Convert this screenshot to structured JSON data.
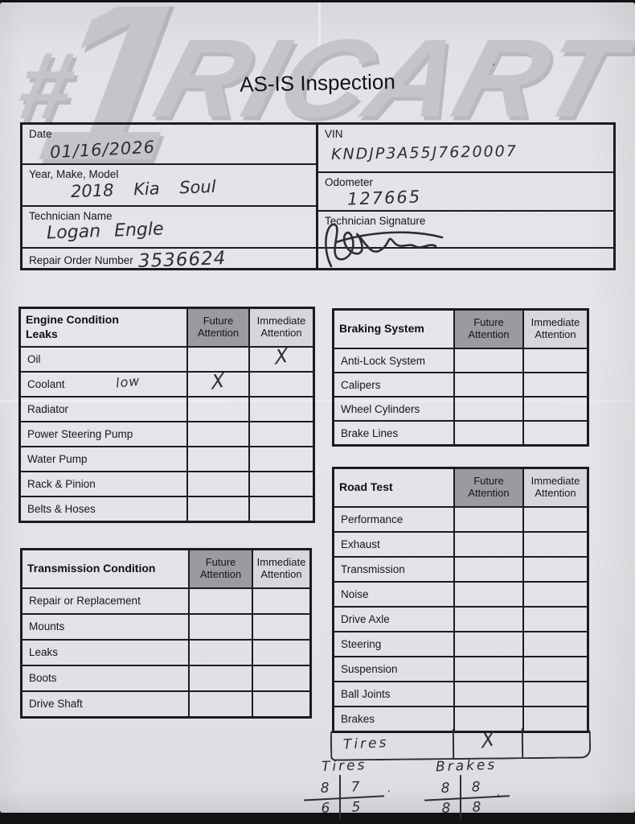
{
  "header": {
    "watermark_hash": "#",
    "watermark_numeral": "1",
    "watermark_name": "RICART",
    "title": "AS-IS Inspection"
  },
  "info": {
    "date": {
      "label": "Date",
      "value": "01/16/2026"
    },
    "vin": {
      "label": "VIN",
      "value": "KNDJP3A55J7620007"
    },
    "ymm": {
      "label": "Year, Make, Model",
      "value": "2018 Kia Soul"
    },
    "odometer": {
      "label": "Odometer",
      "value": "127665"
    },
    "tech_name": {
      "label": "Technician Name",
      "value": "Logan Engle"
    },
    "tech_signature": {
      "label": "Technician Signature"
    },
    "repair_order": {
      "label": "Repair Order Number",
      "value": "3536624"
    }
  },
  "columns": {
    "future": "Future Attention",
    "immediate": "Immediate Attention"
  },
  "colors": {
    "future_header_bg": "#9c99a0",
    "immediate_header_bg": "#d8d6db",
    "ink": "#2e2d35",
    "line": "#1c1b20"
  },
  "tables": {
    "engine": {
      "title": "Engine Condition\nLeaks",
      "rows": [
        {
          "label": "Oil",
          "future": "",
          "immediate": "X"
        },
        {
          "label": "Coolant",
          "note": "low",
          "future": "X",
          "immediate": ""
        },
        {
          "label": "Radiator",
          "future": "",
          "immediate": ""
        },
        {
          "label": "Power Steering Pump",
          "future": "",
          "immediate": ""
        },
        {
          "label": "Water Pump",
          "future": "",
          "immediate": ""
        },
        {
          "label": "Rack & Pinion",
          "future": "",
          "immediate": ""
        },
        {
          "label": "Belts & Hoses",
          "future": "",
          "immediate": ""
        }
      ]
    },
    "braking": {
      "title": "Braking System",
      "rows": [
        {
          "label": "Anti-Lock System",
          "future": "",
          "immediate": ""
        },
        {
          "label": "Calipers",
          "future": "",
          "immediate": ""
        },
        {
          "label": "Wheel Cylinders",
          "future": "",
          "immediate": ""
        },
        {
          "label": "Brake Lines",
          "future": "",
          "immediate": ""
        }
      ]
    },
    "road_test": {
      "title": "Road Test",
      "rows": [
        {
          "label": "Performance",
          "future": "",
          "immediate": ""
        },
        {
          "label": "Exhaust",
          "future": "",
          "immediate": ""
        },
        {
          "label": "Transmission",
          "future": "",
          "immediate": ""
        },
        {
          "label": "Noise",
          "future": "",
          "immediate": ""
        },
        {
          "label": "Drive Axle",
          "future": "",
          "immediate": ""
        },
        {
          "label": "Steering",
          "future": "",
          "immediate": ""
        },
        {
          "label": "Suspension",
          "future": "",
          "immediate": ""
        },
        {
          "label": "Ball Joints",
          "future": "",
          "immediate": ""
        },
        {
          "label": "Brakes",
          "future": "",
          "immediate": ""
        }
      ],
      "extra_row": {
        "label": "Tires",
        "future": "X",
        "immediate": ""
      }
    },
    "transmission": {
      "title": "Transmission Condition",
      "rows": [
        {
          "label": "Repair or Replacement",
          "future": "",
          "immediate": ""
        },
        {
          "label": "Mounts",
          "future": "",
          "immediate": ""
        },
        {
          "label": "Leaks",
          "future": "",
          "immediate": ""
        },
        {
          "label": "Boots",
          "future": "",
          "immediate": ""
        },
        {
          "label": "Drive Shaft",
          "future": "",
          "immediate": ""
        }
      ]
    }
  },
  "notes": {
    "tires": {
      "label": "Tires",
      "top_left": "8",
      "top_right": "7",
      "bottom_left": "6",
      "bottom_right": "5"
    },
    "brakes": {
      "label": "Brakes",
      "top_left": "8",
      "top_right": "8",
      "bottom_left": "8",
      "bottom_right": "8"
    }
  }
}
